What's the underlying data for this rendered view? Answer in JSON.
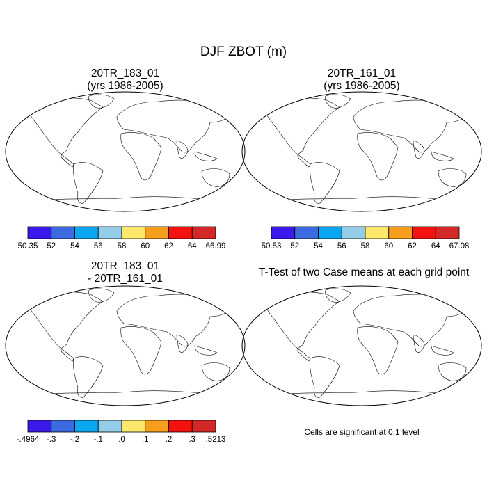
{
  "title": "DJF ZBOT (m)",
  "panels": [
    {
      "title_line1": "20TR_183_01",
      "title_line2": "(yrs 1986-2005)",
      "colorbar": {
        "colors": [
          "#3a1aeb",
          "#3c6ae0",
          "#0aa7f0",
          "#94cde8",
          "#fce86a",
          "#f79e1d",
          "#f4120f",
          "#d42828"
        ],
        "labels": [
          "50.35",
          "52",
          "54",
          "56",
          "58",
          "60",
          "62",
          "64",
          "66.99"
        ]
      }
    },
    {
      "title_line1": "20TR_161_01",
      "title_line2": "(yrs 1986-2005)",
      "colorbar": {
        "colors": [
          "#3a1aeb",
          "#3c6ae0",
          "#0aa7f0",
          "#94cde8",
          "#fce86a",
          "#f79e1d",
          "#f4120f",
          "#d42828"
        ],
        "labels": [
          "50.53",
          "52",
          "54",
          "56",
          "58",
          "60",
          "62",
          "64",
          "67.08"
        ]
      }
    },
    {
      "title_line1": "20TR_183_01",
      "title_line2": "- 20TR_161_01",
      "colorbar": {
        "colors": [
          "#3a1aeb",
          "#3c6ae0",
          "#0aa7f0",
          "#94cde8",
          "#fce86a",
          "#f79e1d",
          "#f4120f",
          "#d42828"
        ],
        "labels": [
          "-.4964",
          "-.3",
          "-.2",
          "-.1",
          ".0",
          ".1",
          ".2",
          ".3",
          ".5213"
        ]
      }
    },
    {
      "title_line1": "T-Test of two Case means at each grid point",
      "note": "Cells are significant at 0.1 level",
      "signif_color": "#ff0000"
    }
  ]
}
